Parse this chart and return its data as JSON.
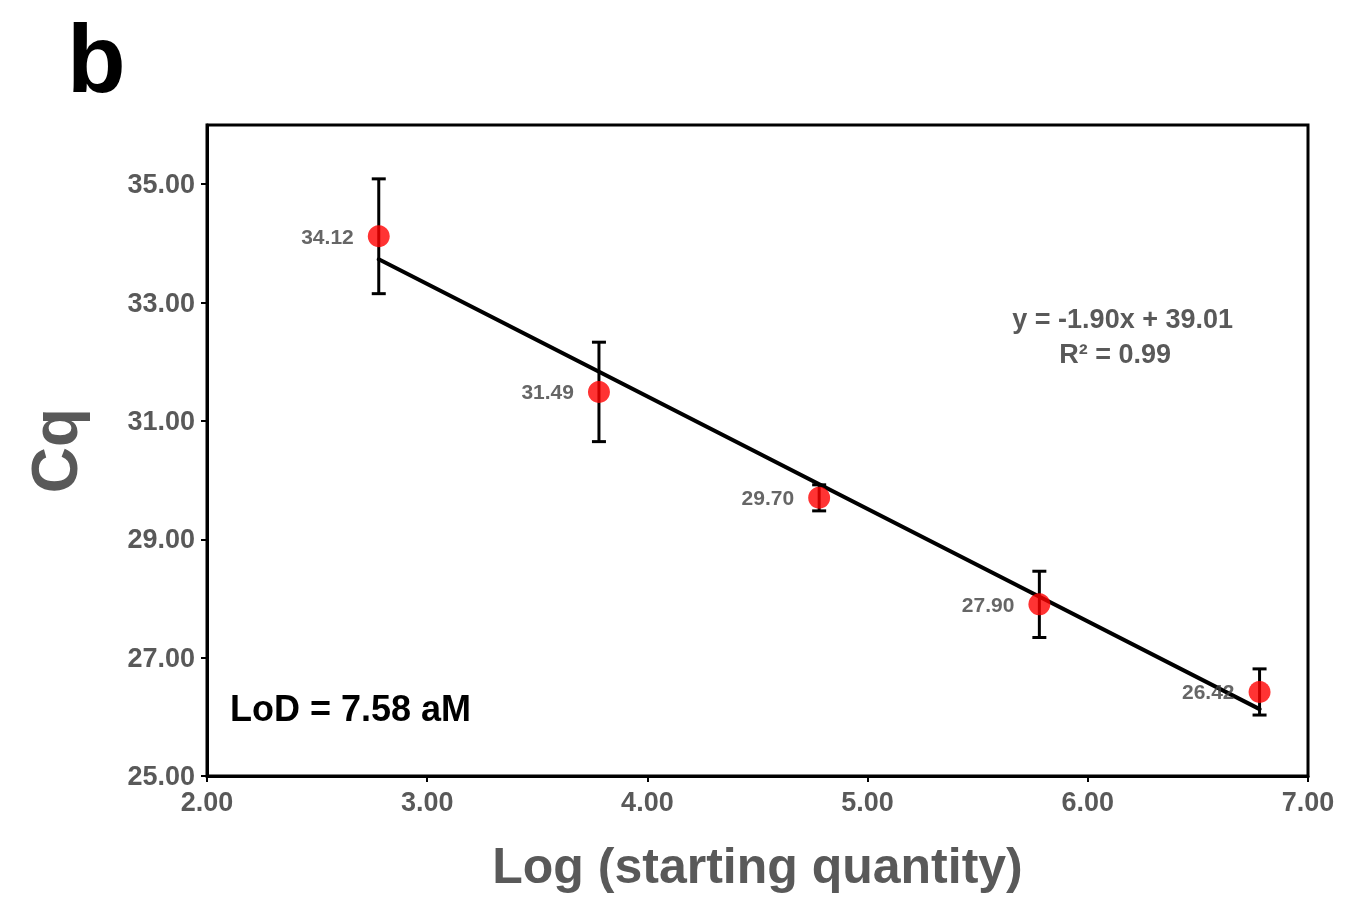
{
  "chart_data": {
    "type": "scatter",
    "title": "b",
    "xlabel": "Log (starting quantity)",
    "ylabel": "Cq",
    "x": [
      2.78,
      3.78,
      4.78,
      5.78,
      6.78
    ],
    "series": [
      {
        "color": "#ff0000",
        "values": [
          34.12,
          31.49,
          29.7,
          27.9,
          26.42
        ],
        "errors": [
          0.97,
          0.84,
          0.22,
          0.56,
          0.39
        ],
        "value_labels": [
          "34.12",
          "31.49",
          "29.70",
          "27.90",
          "26.42"
        ],
        "marker": "circle"
      },
      {
        "type": "line",
        "color": "#000000",
        "x": [
          2.78,
          6.78
        ],
        "values": [
          33.73,
          26.13
        ],
        "marker": "none",
        "line_style": "solid"
      }
    ],
    "xlim": [
      2,
      7
    ],
    "ylim": [
      25,
      36
    ],
    "xticks": [
      {
        "value": 2,
        "label": "2.00"
      },
      {
        "value": 3,
        "label": "3.00"
      },
      {
        "value": 4,
        "label": "4.00"
      },
      {
        "value": 5,
        "label": "5.00"
      },
      {
        "value": 6,
        "label": "6.00"
      },
      {
        "value": 7,
        "label": "7.00"
      }
    ],
    "yticks": [
      {
        "value": 25,
        "label": "25.00"
      },
      {
        "value": 27,
        "label": "27.00"
      },
      {
        "value": 29,
        "label": "29.00"
      },
      {
        "value": 31,
        "label": "31.00"
      },
      {
        "value": 33,
        "label": "33.00"
      },
      {
        "value": 35,
        "label": "35.00"
      }
    ],
    "annotations": [
      "y = -1.90x + 39.01",
      "R² = 0.99",
      "LoD = 7.58 aM"
    ],
    "grid": false
  }
}
